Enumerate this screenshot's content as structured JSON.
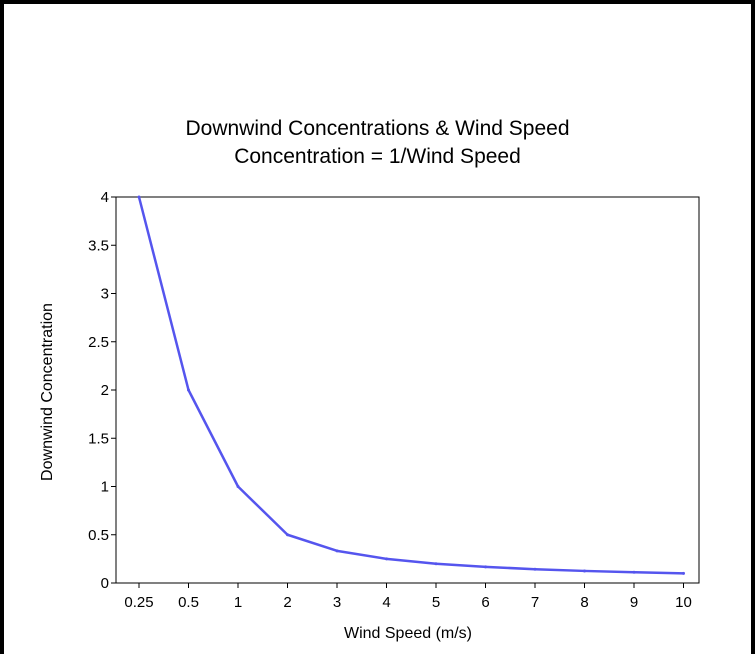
{
  "chart_data": {
    "type": "line",
    "title": "Downwind Concentrations &  Wind Speed",
    "subtitle": "Concentration = 1/Wind Speed",
    "xlabel": "Wind Speed (m/s)",
    "ylabel": "Downwind Concentration",
    "categories": [
      "0.25",
      "0.5",
      "1",
      "2",
      "3",
      "4",
      "5",
      "6",
      "7",
      "8",
      "9",
      "10"
    ],
    "values": [
      4,
      2,
      1,
      0.5,
      0.333,
      0.25,
      0.2,
      0.167,
      0.143,
      0.125,
      0.111,
      0.1
    ],
    "y_ticks": [
      "0",
      "0.5",
      "1",
      "1.5",
      "2",
      "2.5",
      "3",
      "3.5",
      "4"
    ],
    "ylim": [
      0,
      4
    ],
    "line_color": "#5555ee",
    "grid": false,
    "legend": "none"
  }
}
